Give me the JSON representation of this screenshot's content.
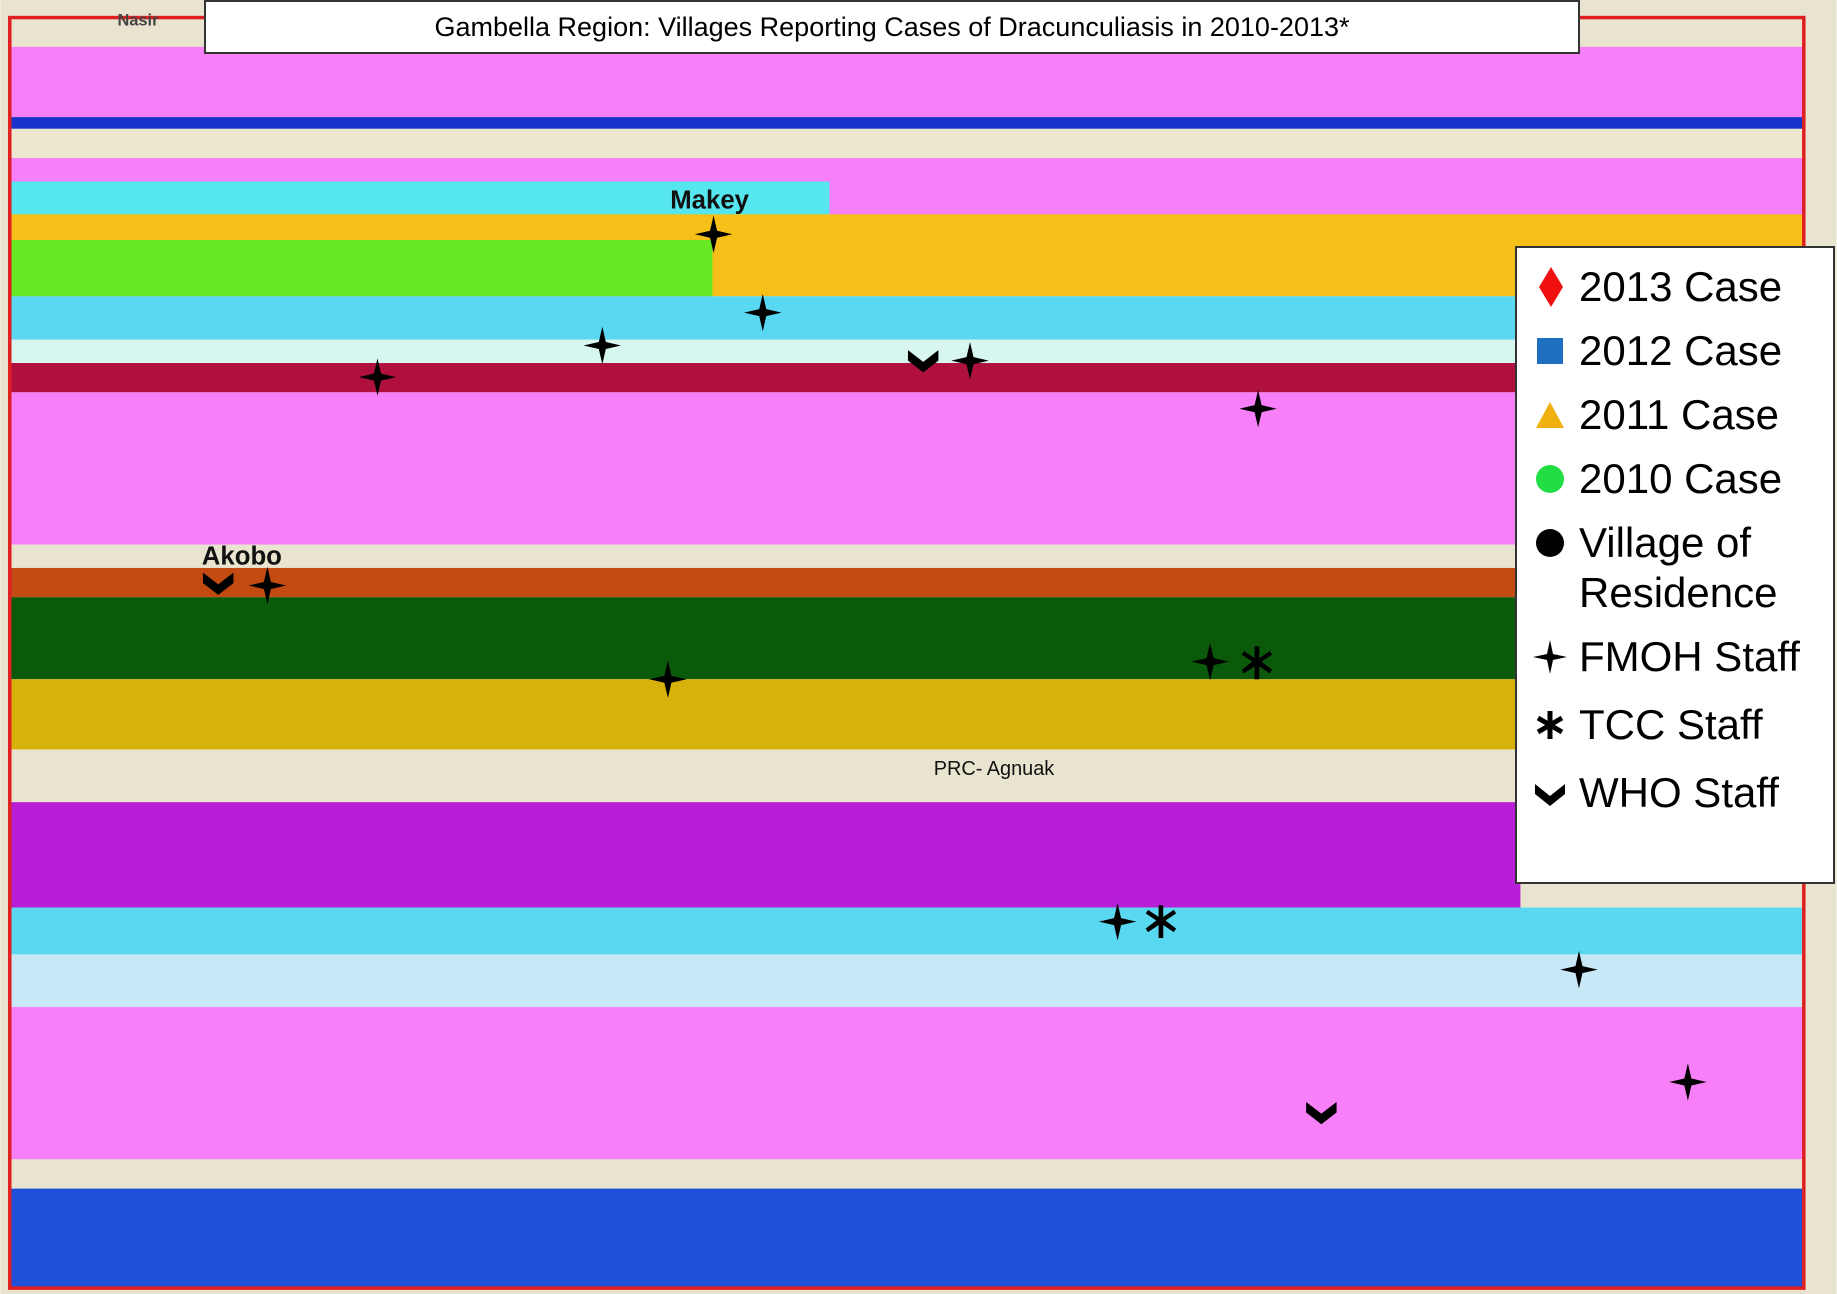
{
  "title": "Gambella Region: Villages Reporting Cases of Dracunculiasis in 2010-2013*",
  "places": [
    "Nasir",
    "Makey",
    "Akobo",
    "PRC- Agnuak"
  ],
  "legend": [
    "2013 Case",
    "2012 Case",
    "2011 Case",
    "2010 Case",
    "Village of Residence",
    "FMOH Staff",
    "TCC Staff",
    "WHO Staff"
  ]
}
